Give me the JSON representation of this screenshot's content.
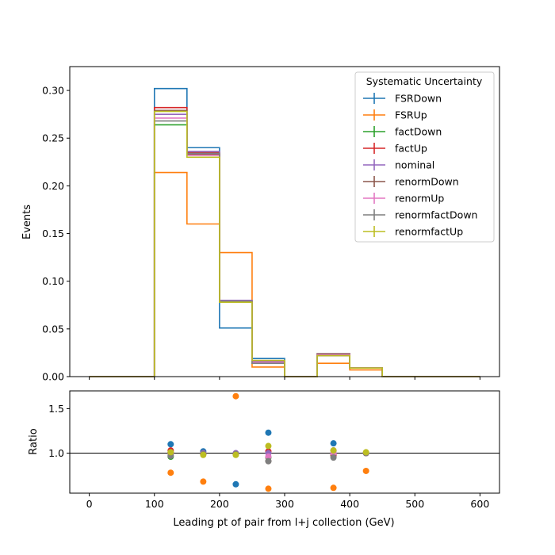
{
  "chart_data": [
    {
      "type": "line",
      "panel": "main",
      "drawstyle": "step",
      "ylabel": "Events",
      "xlim": [
        -30,
        630
      ],
      "ylim": [
        0,
        0.325
      ],
      "yticks": [
        0.0,
        0.05,
        0.1,
        0.15,
        0.2,
        0.25,
        0.3
      ],
      "ytick_labels": [
        "0.00",
        "0.05",
        "0.10",
        "0.15",
        "0.20",
        "0.25",
        "0.30"
      ],
      "bin_edges": [
        0,
        50,
        100,
        150,
        200,
        250,
        300,
        350,
        400,
        450,
        500,
        550,
        600
      ],
      "legend": {
        "title": "Systematic Uncertainty",
        "placement": "top-right"
      },
      "series": [
        {
          "name": "FSRDown",
          "color": "#1f77b4",
          "values": [
            0,
            0,
            0.302,
            0.24,
            0.051,
            0.019,
            0,
            0.024,
            0.009,
            0,
            0,
            0
          ]
        },
        {
          "name": "FSRUp",
          "color": "#ff7f0e",
          "values": [
            0,
            0,
            0.214,
            0.16,
            0.13,
            0.01,
            0,
            0.014,
            0.007,
            0,
            0,
            0
          ]
        },
        {
          "name": "factDown",
          "color": "#2ca02c",
          "values": [
            0,
            0,
            0.264,
            0.233,
            0.079,
            0.015,
            0,
            0.022,
            0.009,
            0,
            0,
            0
          ]
        },
        {
          "name": "factUp",
          "color": "#d62728",
          "values": [
            0,
            0,
            0.282,
            0.235,
            0.079,
            0.016,
            0,
            0.022,
            0.009,
            0,
            0,
            0
          ]
        },
        {
          "name": "nominal",
          "color": "#9467bd",
          "values": [
            0,
            0,
            0.275,
            0.236,
            0.08,
            0.016,
            0,
            0.023,
            0.009,
            0,
            0,
            0
          ]
        },
        {
          "name": "renormDown",
          "color": "#8c564b",
          "values": [
            0,
            0,
            0.279,
            0.233,
            0.079,
            0.014,
            0,
            0.024,
            0.009,
            0,
            0,
            0
          ]
        },
        {
          "name": "renormUp",
          "color": "#e377c2",
          "values": [
            0,
            0,
            0.271,
            0.232,
            0.079,
            0.015,
            0,
            0.023,
            0.009,
            0,
            0,
            0
          ]
        },
        {
          "name": "renormfactDown",
          "color": "#7f7f7f",
          "values": [
            0,
            0,
            0.268,
            0.234,
            0.079,
            0.014,
            0,
            0.022,
            0.009,
            0,
            0,
            0
          ]
        },
        {
          "name": "renormfactUp",
          "color": "#bcbd22",
          "values": [
            0,
            0,
            0.278,
            0.23,
            0.078,
            0.017,
            0,
            0.022,
            0.009,
            0,
            0,
            0
          ]
        }
      ]
    },
    {
      "type": "scatter",
      "panel": "ratio",
      "xlabel": "Leading pt of pair from l+j collection (GeV)",
      "ylabel": "Ratio",
      "xlim": [
        -30,
        630
      ],
      "ylim": [
        0.55,
        1.7
      ],
      "xticks": [
        0,
        100,
        200,
        300,
        400,
        500,
        600
      ],
      "xtick_labels": [
        "0",
        "100",
        "200",
        "300",
        "400",
        "500",
        "600"
      ],
      "yticks": [
        1.0,
        1.5
      ],
      "ytick_labels": [
        "1.0",
        "1.5"
      ],
      "reference_line": 1.0,
      "x": [
        125,
        175,
        225,
        275,
        375,
        425
      ],
      "series": [
        {
          "name": "FSRDown",
          "color": "#1f77b4",
          "values": [
            1.1,
            1.02,
            0.65,
            1.23,
            1.11,
            1.0
          ]
        },
        {
          "name": "FSRUp",
          "color": "#ff7f0e",
          "values": [
            0.78,
            0.68,
            1.64,
            0.6,
            0.61,
            0.8
          ]
        },
        {
          "name": "factDown",
          "color": "#2ca02c",
          "values": [
            0.96,
            0.99,
            0.99,
            0.95,
            0.97,
            1.0
          ]
        },
        {
          "name": "factUp",
          "color": "#d62728",
          "values": [
            1.03,
            1.0,
            0.99,
            1.02,
            0.98,
            1.0
          ]
        },
        {
          "name": "nominal",
          "color": "#9467bd",
          "values": [
            1.0,
            1.0,
            1.0,
            1.0,
            1.0,
            1.0
          ]
        },
        {
          "name": "renormDown",
          "color": "#8c564b",
          "values": [
            1.01,
            0.99,
            0.99,
            0.91,
            1.03,
            1.0
          ]
        },
        {
          "name": "renormUp",
          "color": "#e377c2",
          "values": [
            0.99,
            0.99,
            0.99,
            0.96,
            1.0,
            1.0
          ]
        },
        {
          "name": "renormfactDown",
          "color": "#7f7f7f",
          "values": [
            0.97,
            0.99,
            0.99,
            0.91,
            0.95,
            1.0
          ]
        },
        {
          "name": "renormfactUp",
          "color": "#bcbd22",
          "values": [
            1.01,
            0.98,
            0.98,
            1.08,
            1.03,
            1.01
          ]
        }
      ]
    }
  ]
}
